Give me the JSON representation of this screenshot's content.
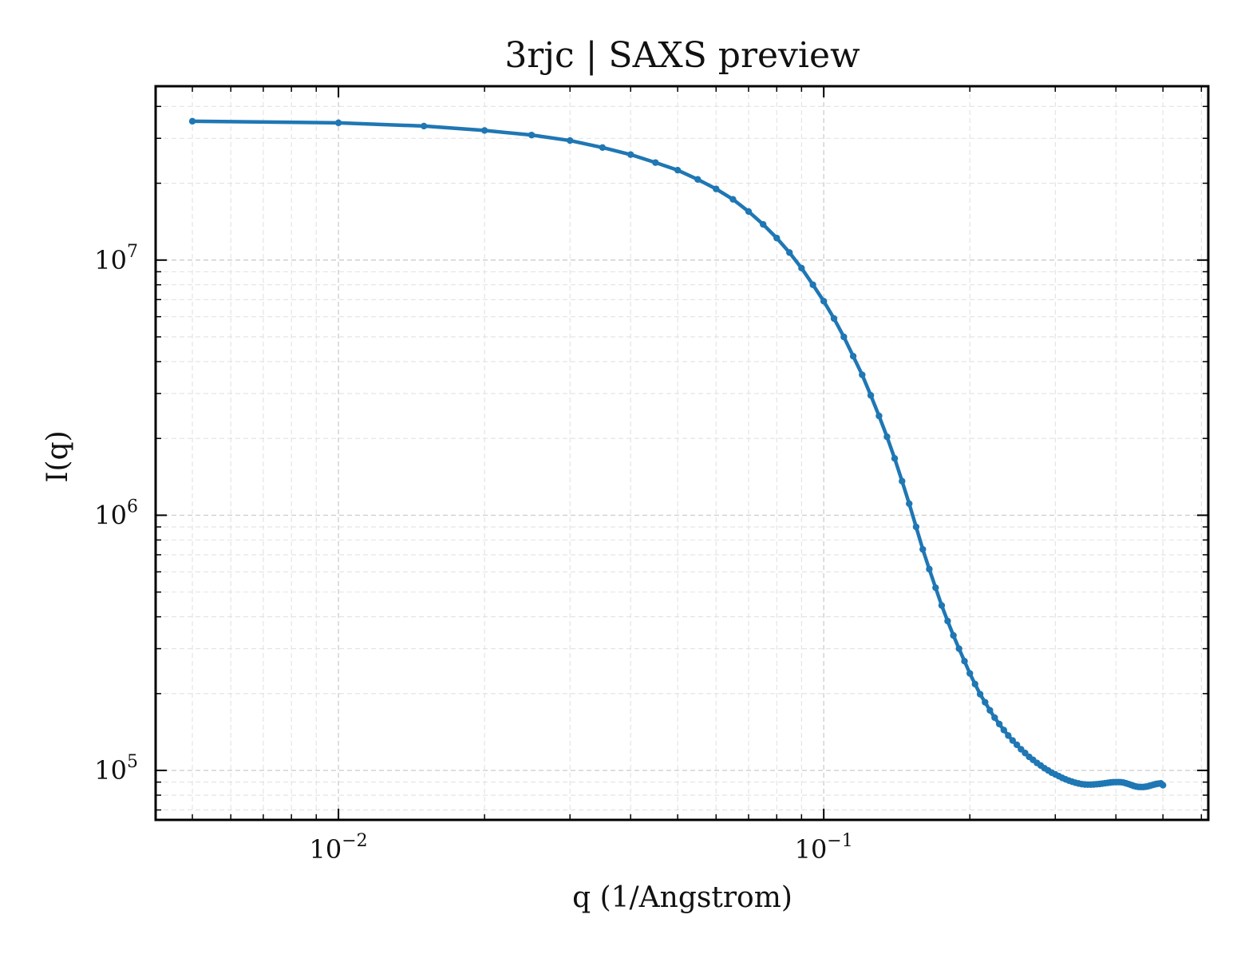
{
  "chart_data": {
    "type": "line",
    "title": "3rjc | SAXS preview",
    "xlabel": "q (1/Angstrom)",
    "ylabel": "I(q)",
    "xscale": "log",
    "yscale": "log",
    "xlim": [
      0.0042,
      0.62
    ],
    "ylim": [
      64000,
      48000000
    ],
    "grid": true,
    "x_ticks": [
      {
        "value": 0.01,
        "base": "10",
        "exp": "−2"
      },
      {
        "value": 0.1,
        "base": "10",
        "exp": "−1"
      }
    ],
    "y_ticks": [
      {
        "value": 100000,
        "base": "10",
        "exp": "5"
      },
      {
        "value": 1000000,
        "base": "10",
        "exp": "6"
      },
      {
        "value": 10000000,
        "base": "10",
        "exp": "7"
      }
    ],
    "series": [
      {
        "color": "#1f77b4",
        "x": [
          0.005,
          0.01,
          0.015,
          0.02,
          0.025,
          0.03,
          0.035,
          0.04,
          0.045,
          0.05,
          0.055,
          0.06,
          0.065,
          0.07,
          0.075,
          0.08,
          0.085,
          0.09,
          0.095,
          0.1,
          0.105,
          0.11,
          0.115,
          0.12,
          0.125,
          0.13,
          0.135,
          0.14,
          0.145,
          0.15,
          0.155,
          0.16,
          0.165,
          0.17,
          0.175,
          0.18,
          0.185,
          0.19,
          0.195,
          0.2,
          0.205,
          0.21,
          0.215,
          0.22,
          0.225,
          0.23,
          0.235,
          0.24,
          0.245,
          0.25,
          0.255,
          0.26,
          0.265,
          0.27,
          0.275,
          0.28,
          0.285,
          0.29,
          0.295,
          0.3,
          0.305,
          0.31,
          0.315,
          0.32,
          0.325,
          0.33,
          0.335,
          0.34,
          0.345,
          0.35,
          0.355,
          0.36,
          0.365,
          0.37,
          0.375,
          0.38,
          0.385,
          0.39,
          0.395,
          0.4,
          0.405,
          0.41,
          0.415,
          0.42,
          0.425,
          0.43,
          0.435,
          0.44,
          0.445,
          0.45,
          0.455,
          0.46,
          0.465,
          0.47,
          0.475,
          0.48,
          0.485,
          0.49,
          0.495,
          0.5
        ],
        "y": [
          35000000,
          34500000,
          33500000,
          32200000,
          30900000,
          29400000,
          27600000,
          25900000,
          24100000,
          22500000,
          20700000,
          19000000,
          17300000,
          15500000,
          13800000,
          12200000,
          10700000,
          9300000,
          8000000,
          6900000,
          5900000,
          5000000,
          4200000,
          3550000,
          2950000,
          2450000,
          2030000,
          1670000,
          1360000,
          1110000,
          900000,
          735000,
          615000,
          520000,
          443000,
          385000,
          338000,
          300000,
          268000,
          240000,
          218000,
          199000,
          185000,
          172000,
          161000,
          152000,
          144000,
          137000,
          131000,
          126000,
          121000,
          117000,
          113000,
          110000,
          107000,
          104500,
          102000,
          100000,
          98000,
          96500,
          95000,
          93500,
          92300,
          91200,
          90300,
          89500,
          88900,
          88400,
          88100,
          88000,
          88000,
          88100,
          88300,
          88500,
          88800,
          89100,
          89400,
          89700,
          89900,
          90000,
          90000,
          89900,
          89600,
          89000,
          88400,
          87700,
          87000,
          86500,
          86200,
          86100,
          86100,
          86300,
          86600,
          87100,
          87600,
          88100,
          88500,
          88800,
          89000,
          87500
        ]
      }
    ]
  }
}
